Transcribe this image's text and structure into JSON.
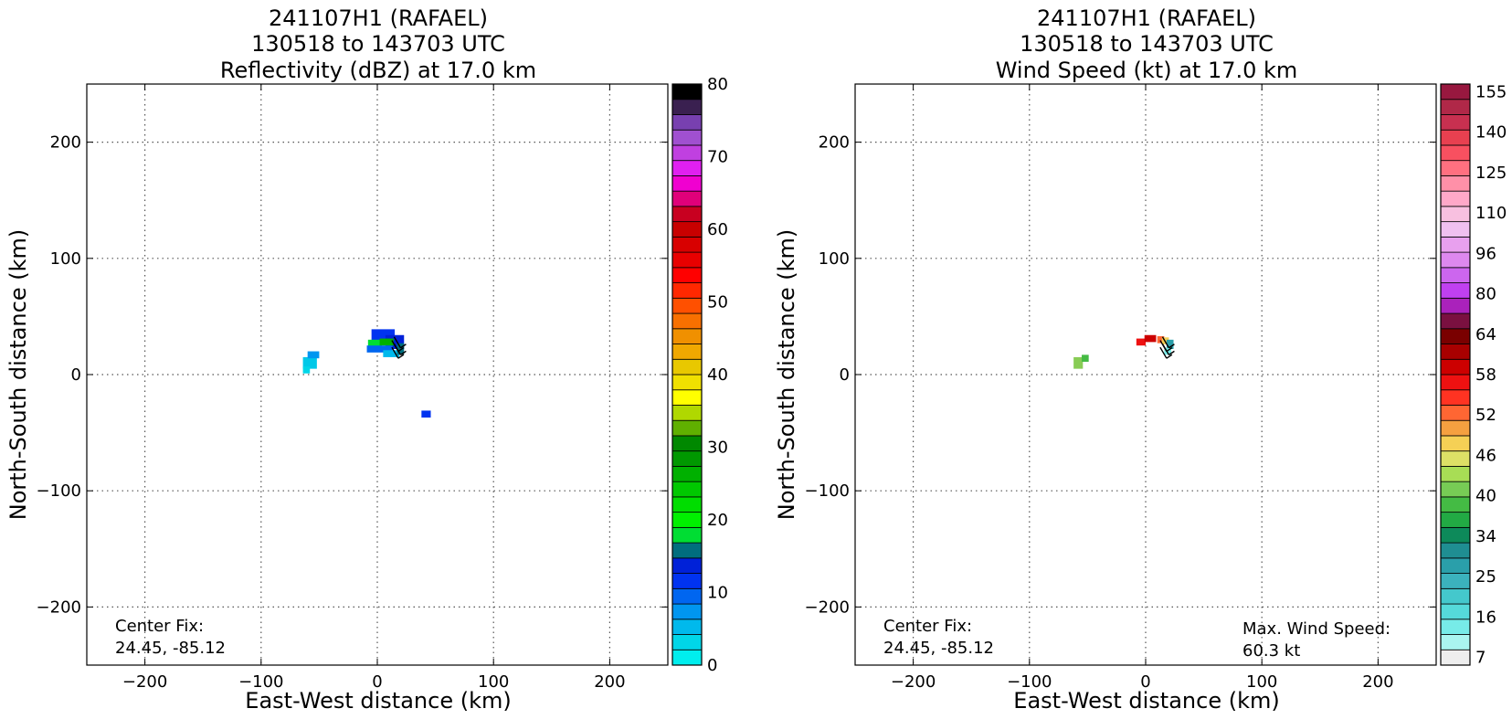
{
  "chart_data": [
    {
      "type": "heatmap",
      "title": [
        "241107H1 (RAFAEL)",
        "130518 to 143703 UTC",
        "Reflectivity (dBZ) at 17.0 km"
      ],
      "xlabel": "East-West distance (km)",
      "ylabel": "North-South distance (km)",
      "xlim": [
        -250,
        250
      ],
      "ylim": [
        -250,
        250
      ],
      "xticks": [
        -200,
        -100,
        0,
        100,
        200
      ],
      "yticks": [
        -200,
        -100,
        0,
        100,
        200
      ],
      "grid": true,
      "annotations": [
        {
          "text": "Center Fix:",
          "pos": "bottom-left"
        },
        {
          "text": "24.45, -85.12",
          "pos": "bottom-left"
        }
      ],
      "colorbar": {
        "min": 0,
        "max": 80,
        "ticks": [
          "0",
          "10",
          "20",
          "30",
          "40",
          "50",
          "60",
          "70",
          "80"
        ],
        "colors": [
          "#00eeee",
          "#00d6e8",
          "#00b9ec",
          "#0096f0",
          "#0066f0",
          "#0033f0",
          "#0021d8",
          "#006e7e",
          "#00dd33",
          "#00f000",
          "#00dd00",
          "#00c800",
          "#00b000",
          "#009800",
          "#008800",
          "#60b000",
          "#b0d800",
          "#ffff00",
          "#f0e000",
          "#e8c800",
          "#f0a800",
          "#f09000",
          "#f87000",
          "#ff5000",
          "#ff2800",
          "#ff0000",
          "#e80000",
          "#d80000",
          "#c80000",
          "#c80020",
          "#e0007a",
          "#f000d0",
          "#e020f0",
          "#c040e0",
          "#a050d0",
          "#7840b0",
          "#3a2050",
          "#000000"
        ]
      },
      "data_cells": [
        {
          "x": -58,
          "y": 10,
          "w": 12,
          "h": 10,
          "color": "#00c8e8"
        },
        {
          "x": -55,
          "y": 17,
          "w": 10,
          "h": 6,
          "color": "#0096f0"
        },
        {
          "x": -61,
          "y": 4,
          "w": 6,
          "h": 6,
          "color": "#00d6e8"
        },
        {
          "x": 5,
          "y": 34,
          "w": 20,
          "h": 10,
          "color": "#0033f0"
        },
        {
          "x": 15,
          "y": 28,
          "w": 16,
          "h": 12,
          "color": "#0021d8"
        },
        {
          "x": -2,
          "y": 26,
          "w": 12,
          "h": 8,
          "color": "#00dd33"
        },
        {
          "x": 8,
          "y": 28,
          "w": 12,
          "h": 6,
          "color": "#00b000"
        },
        {
          "x": 2,
          "y": 22,
          "w": 22,
          "h": 6,
          "color": "#0066f0"
        },
        {
          "x": 12,
          "y": 18,
          "w": 14,
          "h": 6,
          "color": "#00b9ec"
        },
        {
          "x": 20,
          "y": 22,
          "w": 6,
          "h": 10,
          "color": "#006e7e"
        },
        {
          "x": 42,
          "y": -34,
          "w": 8,
          "h": 6,
          "color": "#0033f0"
        }
      ]
    },
    {
      "type": "heatmap",
      "title": [
        "241107H1 (RAFAEL)",
        "130518 to 143703 UTC",
        "Wind Speed (kt) at 17.0 km"
      ],
      "xlabel": "East-West distance (km)",
      "ylabel": "North-South distance (km)",
      "xlim": [
        -250,
        250
      ],
      "ylim": [
        -250,
        250
      ],
      "xticks": [
        -200,
        -100,
        0,
        100,
        200
      ],
      "yticks": [
        -200,
        -100,
        0,
        100,
        200
      ],
      "grid": true,
      "annotations": [
        {
          "text": "Center Fix:",
          "pos": "bottom-left"
        },
        {
          "text": "24.45, -85.12",
          "pos": "bottom-left"
        },
        {
          "text": "Max. Wind Speed:",
          "pos": "bottom-right"
        },
        {
          "text": "60.3 kt",
          "pos": "bottom-right"
        }
      ],
      "colorbar": {
        "ticks": [
          "7",
          "16",
          "25",
          "34",
          "40",
          "46",
          "52",
          "58",
          "64",
          "80",
          "96",
          "110",
          "125",
          "140",
          "155"
        ],
        "colors": [
          "#eeeeee",
          "#aaf5f0",
          "#77ebe8",
          "#55dada",
          "#44c8cc",
          "#3bb2bd",
          "#2a9faa",
          "#1f8e92",
          "#0d8a5a",
          "#22aa44",
          "#44bb44",
          "#77cc55",
          "#a8dd55",
          "#dde066",
          "#f5d055",
          "#f5a040",
          "#ff6633",
          "#ff3322",
          "#ee1111",
          "#cc0000",
          "#a80000",
          "#7a0000",
          "#7a1040",
          "#aa22bb",
          "#c040f0",
          "#cc66ee",
          "#dd88ee",
          "#e8a0ee",
          "#f0c0f0",
          "#f8c0e0",
          "#ffa8c8",
          "#ff90a8",
          "#ff7080",
          "#f85060",
          "#e84050",
          "#c83050",
          "#b02848",
          "#98183f"
        ]
      },
      "data_cells": [
        {
          "x": -58,
          "y": 10,
          "w": 8,
          "h": 10,
          "color": "#88cc55"
        },
        {
          "x": -52,
          "y": 14,
          "w": 6,
          "h": 6,
          "color": "#44bb44"
        },
        {
          "x": -4,
          "y": 28,
          "w": 8,
          "h": 6,
          "color": "#ee1111"
        },
        {
          "x": 4,
          "y": 31,
          "w": 10,
          "h": 6,
          "color": "#cc0000"
        },
        {
          "x": 13,
          "y": 30,
          "w": 6,
          "h": 6,
          "color": "#ff6633"
        },
        {
          "x": 17,
          "y": 29,
          "w": 6,
          "h": 6,
          "color": "#f5d055"
        },
        {
          "x": 21,
          "y": 26,
          "w": 6,
          "h": 8,
          "color": "#2a9faa"
        },
        {
          "x": 19,
          "y": 20,
          "w": 6,
          "h": 6,
          "color": "#77ebe8"
        }
      ]
    }
  ]
}
